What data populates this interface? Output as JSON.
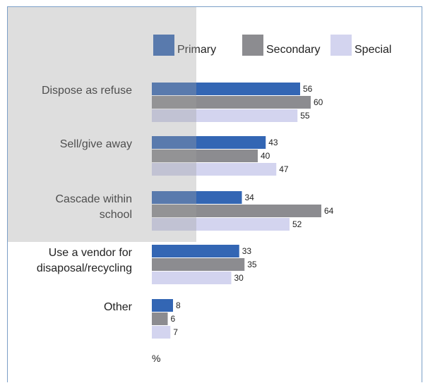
{
  "chart_data": {
    "type": "bar",
    "orientation": "horizontal",
    "categories": [
      [
        "Dispose as refuse"
      ],
      [
        "Sell/give away"
      ],
      [
        "Cascade within",
        "school"
      ],
      [
        "Use a vendor for",
        "disaposal/recycling"
      ],
      [
        "Other"
      ]
    ],
    "series": [
      {
        "name": "Primary",
        "color": "#3366b4",
        "values": [
          56,
          43,
          34,
          33,
          8
        ]
      },
      {
        "name": "Secondary",
        "color": "#8c8c90",
        "values": [
          60,
          40,
          64,
          35,
          6
        ]
      },
      {
        "name": "Special",
        "color": "#d3d4ef",
        "values": [
          55,
          47,
          52,
          30,
          7
        ]
      }
    ],
    "xlim": [
      0,
      100
    ],
    "unit_label": "%",
    "legend_position": "top",
    "grid": false
  }
}
